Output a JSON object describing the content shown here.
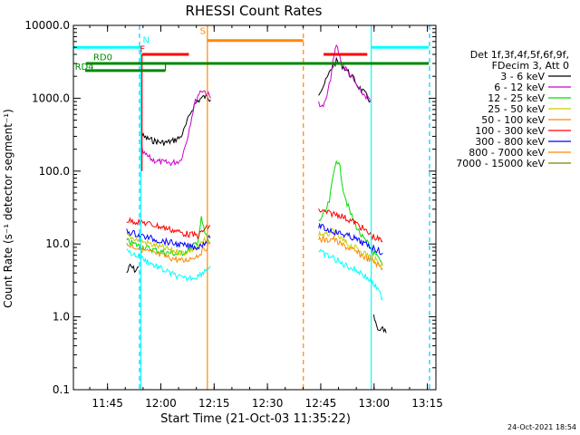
{
  "chart_data": {
    "type": "line",
    "title": "RHESSI Count Rates",
    "xlabel": "Start Time (21-Oct-03 11:35:22)",
    "ylabel": "Count Rate (s⁻¹ detector segment⁻¹)",
    "x_unit": "minutes after 11:35:22",
    "xlim": [
      0,
      102
    ],
    "ylim": [
      0.1,
      10000
    ],
    "y_scale": "log",
    "x_ticks": [
      {
        "t": 9.6,
        "label": "11:45"
      },
      {
        "t": 24.6,
        "label": "12:00"
      },
      {
        "t": 39.6,
        "label": "12:15"
      },
      {
        "t": 54.6,
        "label": "12:30"
      },
      {
        "t": 69.6,
        "label": "12:45"
      },
      {
        "t": 84.6,
        "label": "13:00"
      },
      {
        "t": 99.6,
        "label": "13:15"
      }
    ],
    "y_ticks": [
      {
        "v": 0.1,
        "label": "0.1"
      },
      {
        "v": 1,
        "label": "1.0"
      },
      {
        "v": 10,
        "label": "10.0"
      },
      {
        "v": 100,
        "label": "100.0"
      },
      {
        "v": 1000,
        "label": "1000.0"
      },
      {
        "v": 10000,
        "label": "10000.0"
      }
    ],
    "legend_header": [
      "Det 1f,3f,4f,5f,6f,9f,",
      "FDecim 3, Att 0"
    ],
    "legend_position": "right",
    "series": [
      {
        "name": "3 - 6 keV",
        "color": "#000000",
        "segments": [
          {
            "x": [
              15.0,
              16.0,
              17.5,
              18.4
            ],
            "y": [
              4,
              5,
              4.3,
              4.8
            ]
          },
          {
            "x": [
              19.0,
              20,
              22,
              24,
              26,
              28,
              30,
              31,
              32,
              33,
              34,
              35,
              36,
              37,
              38,
              38.6
            ],
            "y": [
              320,
              290,
              265,
              250,
              245,
              260,
              290,
              350,
              470,
              640,
              800,
              920,
              1000,
              1050,
              1000,
              950
            ]
          },
          {
            "x": [
              69.0,
              70.0,
              71,
              72,
              73,
              74,
              75,
              76,
              77,
              78,
              79,
              80,
              81,
              82,
              83,
              83.5
            ],
            "y": [
              1200,
              1400,
              1700,
              2200,
              2800,
              3200,
              3000,
              2700,
              2400,
              2100,
              1800,
              1500,
              1300,
              1150,
              1000,
              900
            ]
          },
          {
            "x": [
              84.5,
              85,
              86,
              87,
              88
            ],
            "y": [
              1.0,
              0.8,
              0.6,
              0.7,
              0.6
            ]
          }
        ]
      },
      {
        "name": "6 - 12 keV",
        "color": "#cc00cc",
        "segments": [
          {
            "x": [
              19.0,
              20,
              22,
              24,
              26,
              28,
              30,
              31,
              32,
              33,
              34,
              35,
              36,
              37,
              38,
              38.6
            ],
            "y": [
              200,
              170,
              145,
              135,
              130,
              130,
              140,
              185,
              280,
              480,
              800,
              1100,
              1300,
              1250,
              1100,
              1000
            ]
          },
          {
            "x": [
              69.0,
              70,
              71,
              72,
              73,
              74,
              75,
              76,
              77,
              78,
              79,
              80,
              81,
              82,
              83,
              83.5
            ],
            "y": [
              900,
              750,
              900,
              1500,
              3000,
              5500,
              3600,
              2800,
              2400,
              2000,
              1700,
              1400,
              1200,
              1100,
              1000,
              900
            ]
          }
        ]
      },
      {
        "name": "12 - 25 keV",
        "color": "#00dd00",
        "segments": [
          {
            "x": [
              15.0,
              17,
              19,
              21,
              23,
              25,
              27,
              29,
              31,
              33,
              35,
              36,
              37,
              38.5
            ],
            "y": [
              11,
              10,
              9.3,
              8.7,
              8.2,
              7.8,
              7.5,
              7.3,
              7.6,
              8.5,
              11,
              22,
              14,
              10
            ]
          },
          {
            "x": [
              69.0,
              70,
              71,
              72,
              73,
              74,
              75,
              76,
              77,
              78,
              79,
              80,
              81,
              82,
              83,
              84,
              85,
              86,
              87
            ],
            "y": [
              20,
              24,
              28,
              38,
              80,
              150,
              110,
              55,
              36,
              26,
              20,
              16,
              13,
              11,
              10,
              8,
              7,
              6,
              5
            ]
          }
        ]
      },
      {
        "name": "25 - 50 keV",
        "color": "#cccc00",
        "segments": [
          {
            "x": [
              15.0,
              19,
              23,
              27,
              31,
              35,
              38.5
            ],
            "y": [
              13,
              11,
              9.5,
              8.3,
              7.5,
              9.0,
              13
            ]
          },
          {
            "x": [
              69.0,
              71,
              73,
              75,
              77,
              79,
              81,
              83,
              85,
              87
            ],
            "y": [
              14,
              13,
              15,
              12,
              10,
              9,
              8,
              7,
              6,
              5
            ]
          }
        ]
      },
      {
        "name": "50 - 100 keV",
        "color": "#ff8800",
        "segments": [
          {
            "x": [
              15.0,
              19,
              23,
              27,
              31,
              35,
              38.5
            ],
            "y": [
              10,
              8.5,
              7.3,
              6.5,
              5.8,
              7.0,
              10
            ]
          },
          {
            "x": [
              69.0,
              71,
              73,
              75,
              77,
              79,
              81,
              83,
              85,
              87
            ],
            "y": [
              12,
              11,
              12,
              10,
              9,
              8,
              7,
              6.2,
              5.5,
              4.6
            ]
          }
        ]
      },
      {
        "name": "100 - 300 keV",
        "color": "#ff0000",
        "segments": [
          {
            "x": [
              15.0,
              19,
              23,
              27,
              31,
              35,
              37,
              38.5
            ],
            "y": [
              21,
              20,
              18,
              16,
              14,
              13,
              16,
              18
            ]
          },
          {
            "x": [
              69.0,
              71,
              73,
              75,
              77,
              79,
              81,
              83,
              85,
              87
            ],
            "y": [
              29,
              27,
              26,
              25,
              22,
              20,
              17,
              14,
              12,
              11
            ]
          }
        ]
      },
      {
        "name": "300 - 800 keV",
        "color": "#0000ff",
        "segments": [
          {
            "x": [
              15.0,
              19,
              23,
              27,
              31,
              35,
              38.5
            ],
            "y": [
              15,
              13,
              11.5,
              10.5,
              9.5,
              9.0,
              12
            ]
          },
          {
            "x": [
              69.0,
              71,
              73,
              75,
              77,
              79,
              81,
              83,
              85,
              87
            ],
            "y": [
              18,
              16,
              15,
              14,
              13,
              12,
              10.5,
              9.5,
              8.5,
              7.5
            ]
          }
        ]
      },
      {
        "name": "800 - 7000 keV",
        "color": "#ff8800",
        "segments": []
      },
      {
        "name": "7000 - 15000 keV",
        "color": "#808000",
        "segments": []
      },
      {
        "name": "",
        "color": "#00ffff",
        "segments": [
          {
            "x": [
              15.0,
              19,
              23,
              27,
              31,
              35,
              38.5
            ],
            "y": [
              8,
              6.5,
              5.0,
              4.0,
              3.3,
              3.6,
              5
            ]
          },
          {
            "x": [
              69.0,
              71,
              73,
              75,
              77,
              79,
              81,
              83,
              85,
              87
            ],
            "y": [
              8,
              7,
              6.5,
              5.5,
              5,
              4.5,
              4,
              3.3,
              2.6,
              1.8
            ]
          }
        ]
      }
    ],
    "attenuator_steps": [
      {
        "label": "N",
        "color": "#00ffff",
        "segments": [
          [
            0,
            19.0,
            5000
          ],
          [
            83.8,
            100,
            5000
          ]
        ],
        "label_x": 19.5,
        "label_y": 5700
      },
      {
        "label": "F",
        "color": "#ff0000",
        "segments": [
          [
            19.3,
            32.5,
            4000
          ],
          [
            70.4,
            82.7,
            4000
          ]
        ],
        "label_x": 18.7,
        "label_y": 4300
      },
      {
        "label": "S",
        "color": "#ff8800",
        "segments": [
          [
            37.7,
            64.7,
            6200
          ]
        ],
        "label_x": 35.6,
        "label_y": 7600
      },
      {
        "label": "RD0",
        "color": "#008800",
        "segments": [
          [
            3.5,
            100,
            3000
          ]
        ],
        "label_x": 5.6,
        "label_y": 3300
      },
      {
        "label": "RD4",
        "color": "#008800",
        "segments": [
          [
            3.3,
            25.9,
            2400
          ]
        ],
        "label_x": 0.4,
        "label_y": 2450
      }
    ],
    "step_links": [
      {
        "color": "#00ffff",
        "x": 19.0,
        "y1": 5000,
        "y2": 0.1
      },
      {
        "color": "#ff0000",
        "x": 19.3,
        "y1": 4000,
        "y2": 100
      },
      {
        "color": "#008800",
        "x": 25.9,
        "y1": 2400,
        "y2": 3000
      }
    ],
    "vertical_markers": [
      {
        "x": 18.6,
        "color": "#00ccff",
        "style": "dashed"
      },
      {
        "x": 37.7,
        "color": "#ff8800",
        "style": "solid"
      },
      {
        "x": 64.7,
        "color": "#ff8800",
        "style": "dashed"
      },
      {
        "x": 83.8,
        "color": "#00ffff",
        "style": "solid"
      },
      {
        "x": 100.2,
        "color": "#00ccff",
        "style": "dashed"
      }
    ]
  },
  "footer_timestamp": "24-Oct-2021 18:54"
}
